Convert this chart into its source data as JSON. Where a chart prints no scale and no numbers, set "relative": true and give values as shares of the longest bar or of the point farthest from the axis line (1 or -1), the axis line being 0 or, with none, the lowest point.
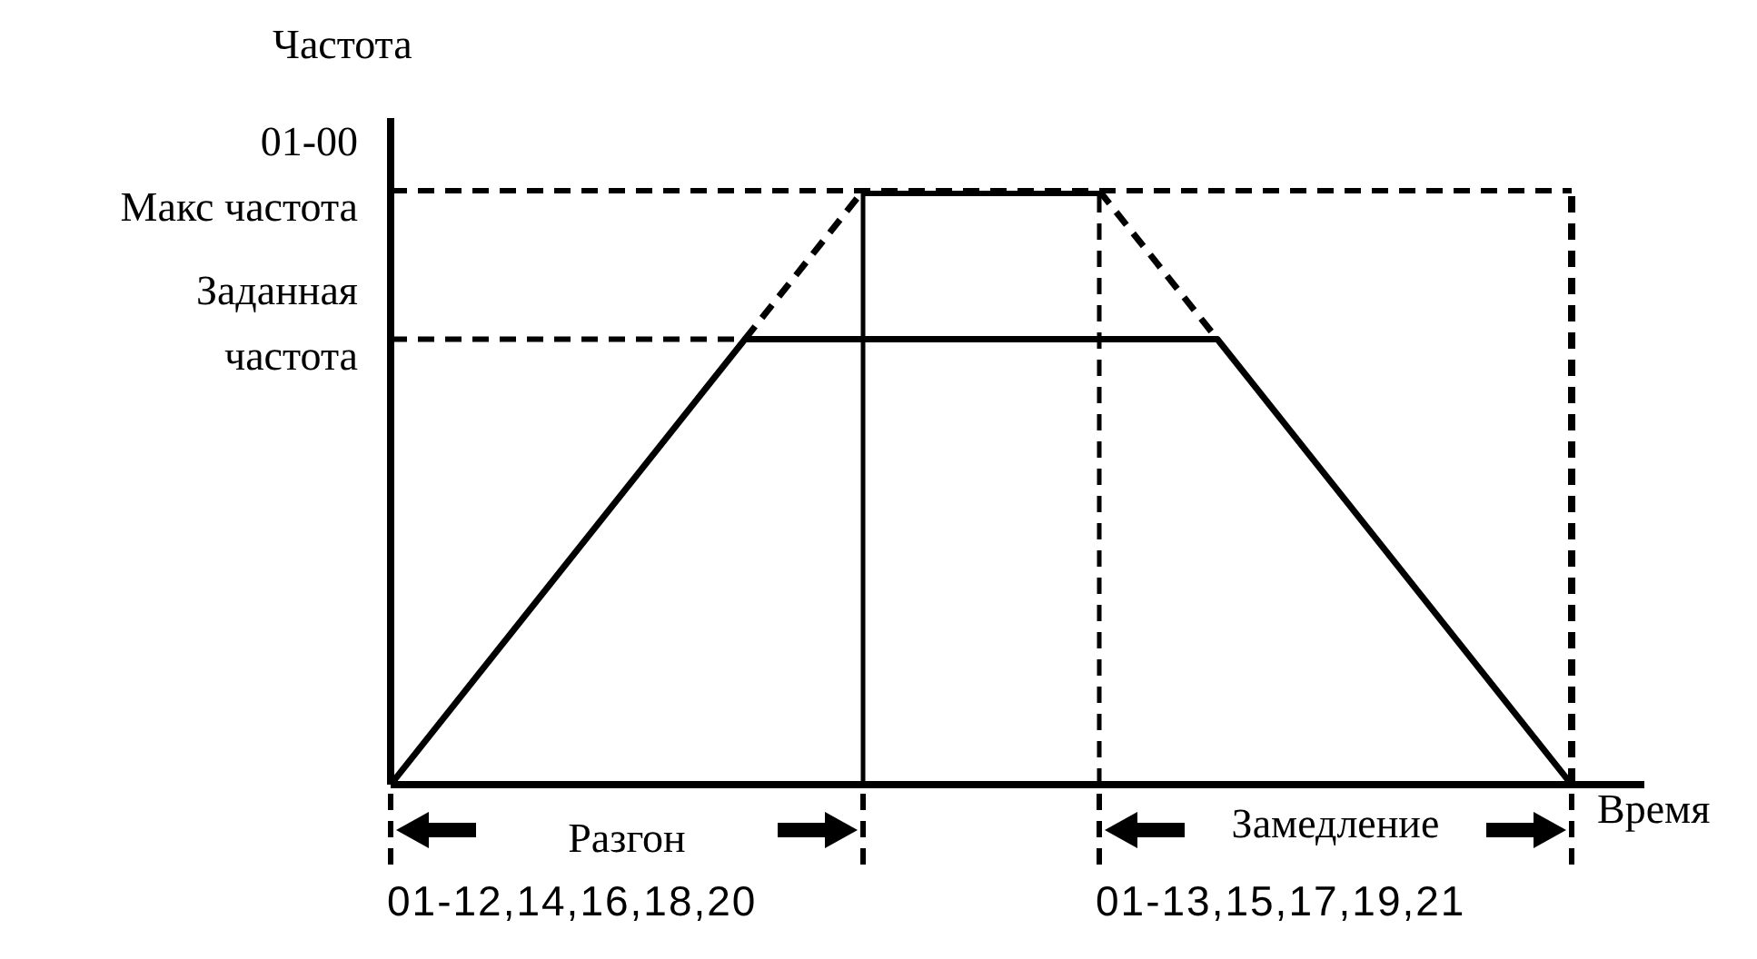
{
  "chart_data": {
    "type": "line",
    "relative": true,
    "ylabel": "Частота",
    "xlabel": "Время",
    "marker": "none",
    "categories": [
      null,
      null,
      null,
      null,
      null,
      null,
      null,
      null,
      null,
      null,
      null,
      null,
      null,
      null,
      null,
      null,
      null,
      null,
      null,
      null,
      null
    ],
    "series": [
      {
        "color": "#000000",
        "line_style": "solid",
        "values": [
          0,
          null,
          null,
          null,
          null,
          null,
          0.75,
          null,
          null,
          null,
          null,
          null,
          null,
          null,
          0.75,
          null,
          null,
          null,
          null,
          null,
          0
        ]
      },
      {
        "color": "#000000",
        "line_style": "dashed",
        "values": [
          null,
          null,
          null,
          null,
          null,
          null,
          0.75,
          null,
          1,
          null,
          null,
          null,
          null,
          null,
          null,
          null,
          null,
          null,
          null,
          null,
          null
        ]
      },
      {
        "color": "#000000",
        "line_style": "dashed",
        "values": [
          null,
          null,
          null,
          null,
          null,
          null,
          null,
          null,
          null,
          null,
          null,
          null,
          1,
          null,
          0.75,
          null,
          null,
          null,
          null,
          null,
          null
        ]
      },
      {
        "color": "#000000",
        "line_style": "solid",
        "values": [
          null,
          null,
          null,
          null,
          null,
          null,
          null,
          null,
          1,
          null,
          null,
          null,
          1,
          null,
          null,
          null,
          null,
          null,
          null,
          null,
          null
        ]
      }
    ],
    "ref_lines": [
      {
        "axis": "y",
        "value": 1,
        "label": "01-00\nМакс частота",
        "line_style": "dashed"
      },
      {
        "axis": "y",
        "value": 0.75,
        "label": "Заданная\nчастота",
        "line_style": "dashed"
      }
    ],
    "annotations": [
      "Разгон",
      "Замедление",
      "01-12,14,16,18,20",
      "01-13,15,17,19,21"
    ]
  }
}
